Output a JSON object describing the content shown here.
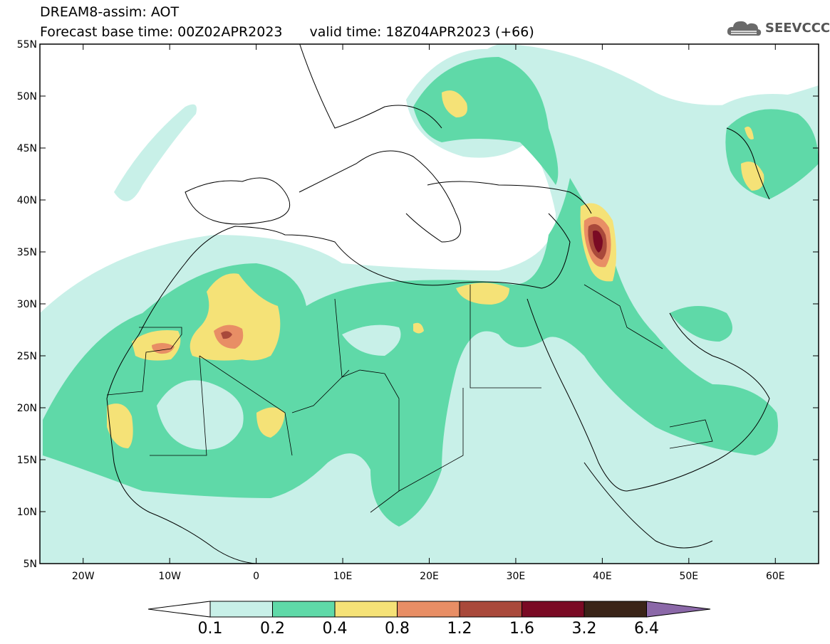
{
  "header": {
    "title": "DREAM8-assim: AOT",
    "base_time": "Forecast base time: 00Z02APR2023",
    "valid_time": "valid time: 18Z04APR2023 (+66)"
  },
  "logo": {
    "text": "SEEVCCC",
    "icon": "cloud-icon"
  },
  "map": {
    "lat_labels": [
      "55N",
      "50N",
      "45N",
      "40N",
      "35N",
      "30N",
      "25N",
      "20N",
      "15N",
      "10N",
      "5N"
    ],
    "lon_labels": [
      "20W",
      "10W",
      "0",
      "10E",
      "20E",
      "30E",
      "40E",
      "50E",
      "60E"
    ],
    "extent": {
      "lon_min": -25,
      "lon_max": 65,
      "lat_min": 5,
      "lat_max": 55
    }
  },
  "legend": {
    "values": [
      "0.1",
      "0.2",
      "0.4",
      "0.8",
      "1.2",
      "1.6",
      "3.2",
      "6.4"
    ],
    "colors": [
      "#ffffff",
      "#c8f0e8",
      "#5fd9a8",
      "#f5e277",
      "#e88e65",
      "#a9493b",
      "#7a0a24",
      "#3a2418",
      "#8b68a8"
    ]
  },
  "colors": {
    "c1": "#c8f0e8",
    "c2": "#5fd9a8",
    "c3": "#f5e277",
    "c4": "#e88e65",
    "c5": "#a9493b",
    "c6": "#7a0a24"
  }
}
